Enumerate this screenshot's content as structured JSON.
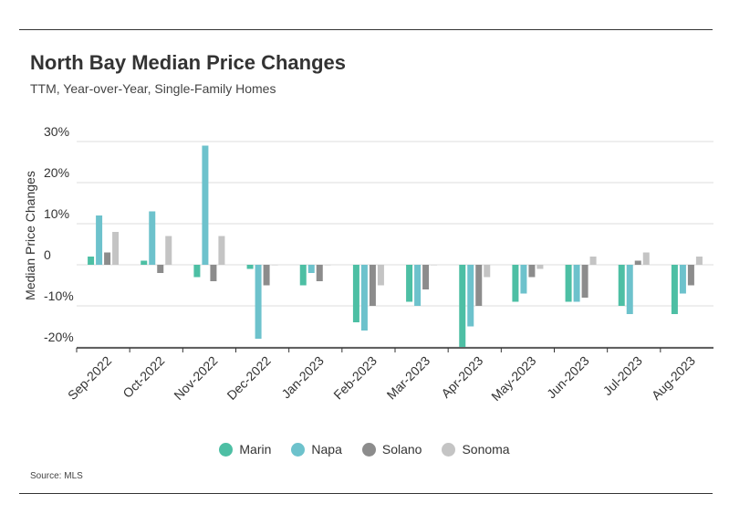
{
  "header": {
    "title": "North Bay Median Price Changes",
    "subtitle": "TTM, Year-over-Year, Single-Family Homes"
  },
  "footer": {
    "source": "Source: MLS"
  },
  "colors": {
    "Marin": "#4dbfa4",
    "Napa": "#6dc2cc",
    "Solano": "#8c8c8c",
    "Sonoma": "#c4c4c4",
    "grid": "#dddddd",
    "axis": "#333333"
  },
  "chart_data": {
    "type": "bar",
    "title": "North Bay Median Price Changes",
    "subtitle": "TTM, Year-over-Year, Single-Family Homes",
    "xlabel": "",
    "ylabel": "Median Price Changes",
    "ylim": [
      -20,
      30
    ],
    "yticks": [
      -20,
      -10,
      0,
      10,
      20,
      30
    ],
    "ytick_labels": [
      "-20%",
      "-10%",
      "0",
      "10%",
      "20%",
      "30%"
    ],
    "grid": true,
    "legend_position": "bottom-center",
    "categories": [
      "Sep-2022",
      "Oct-2022",
      "Nov-2022",
      "Dec-2022",
      "Jan-2023",
      "Feb-2023",
      "Mar-2023",
      "Apr-2023",
      "May-2023",
      "Jun-2023",
      "Jul-2023",
      "Aug-2023"
    ],
    "series": [
      {
        "name": "Marin",
        "values": [
          2,
          1,
          -3,
          -1,
          -5,
          -14,
          -9,
          -20,
          -9,
          -9,
          -10,
          -12
        ]
      },
      {
        "name": "Napa",
        "values": [
          12,
          13,
          29,
          -18,
          -2,
          -16,
          -10,
          -15,
          -7,
          -9,
          -12,
          -7
        ]
      },
      {
        "name": "Solano",
        "values": [
          3,
          -2,
          -4,
          -5,
          -4,
          -10,
          -6,
          -10,
          -3,
          -8,
          1,
          -5
        ]
      },
      {
        "name": "Sonoma",
        "values": [
          8,
          7,
          7,
          0,
          0,
          -5,
          0,
          -3,
          -1,
          2,
          3,
          2
        ]
      }
    ]
  }
}
